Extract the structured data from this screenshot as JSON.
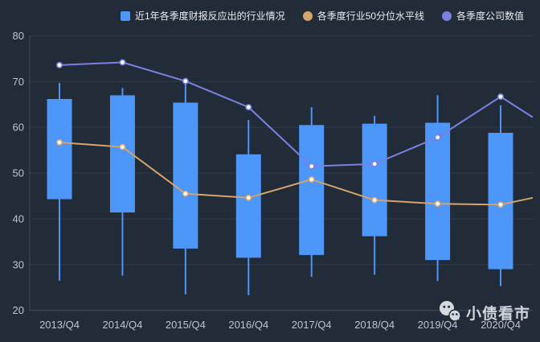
{
  "legend": {
    "items": [
      {
        "label": "近1年各季度财报反应出的行业情况",
        "marker": "square",
        "color": "#4D96FA"
      },
      {
        "label": "各季度行业50分位水平线",
        "marker": "circle",
        "color": "#D4A46A"
      },
      {
        "label": "各季度公司数值",
        "marker": "circle",
        "color": "#7B80E1"
      }
    ]
  },
  "watermark": {
    "text": "小债看市",
    "icon": "wechat-icon"
  },
  "colors": {
    "background": "#222B38",
    "grid": "#2E3A4C",
    "axis": "#3D4A60",
    "tick_label": "#BCC5D4",
    "legend_text": "#E8ECF2",
    "candle": "#4D96FA",
    "line_50pct": "#D4A46A",
    "line_company": "#7B80E1",
    "marker_fill": "#FFFFFF",
    "watermark": "#DCE0E5"
  },
  "chart_data": {
    "type": "candlestick",
    "title": "",
    "categories": [
      "2013/Q4",
      "2014/Q4",
      "2015/Q4",
      "2016/Q4",
      "2017/Q4",
      "2018/Q4",
      "2019/Q4",
      "2020/Q4"
    ],
    "xlabel": "",
    "ylabel": "",
    "ylim": [
      20,
      80
    ],
    "yticks": [
      20,
      30,
      40,
      50,
      60,
      70,
      80
    ],
    "grid": true,
    "legend_position": "top",
    "series": [
      {
        "name": "近1年各季度财报反应出的行业情况",
        "type": "candlestick",
        "color": "#4D96FA",
        "values": [
          {
            "whisker_low": 26.5,
            "box_low": 44.3,
            "box_high": 66.2,
            "whisker_high": 69.7
          },
          {
            "whisker_low": 27.6,
            "box_low": 41.4,
            "box_high": 67.0,
            "whisker_high": 68.6
          },
          {
            "whisker_low": 23.5,
            "box_low": 33.5,
            "box_high": 65.4,
            "whisker_high": 69.7
          },
          {
            "whisker_low": 23.3,
            "box_low": 31.5,
            "box_high": 54.1,
            "whisker_high": 61.6
          },
          {
            "whisker_low": 27.3,
            "box_low": 32.1,
            "box_high": 60.5,
            "whisker_high": 64.4
          },
          {
            "whisker_low": 27.8,
            "box_low": 36.2,
            "box_high": 60.8,
            "whisker_high": 62.5
          },
          {
            "whisker_low": 26.4,
            "box_low": 31.0,
            "box_high": 61.0,
            "whisker_high": 67.0
          },
          {
            "whisker_low": 25.3,
            "box_low": 29.0,
            "box_high": 58.8,
            "whisker_high": 64.8
          }
        ]
      },
      {
        "name": "各季度行业50分位水平线",
        "type": "line",
        "color": "#D4A46A",
        "values": [
          56.7,
          55.7,
          45.5,
          44.6,
          48.6,
          44.1,
          43.3,
          43.1
        ],
        "right_edge_value": 44.6
      },
      {
        "name": "各季度公司数值",
        "type": "line",
        "color": "#7B80E1",
        "values": [
          73.6,
          74.2,
          70.1,
          64.4,
          51.5,
          52.0,
          57.8,
          66.7
        ],
        "right_edge_value": 62.2
      }
    ]
  }
}
